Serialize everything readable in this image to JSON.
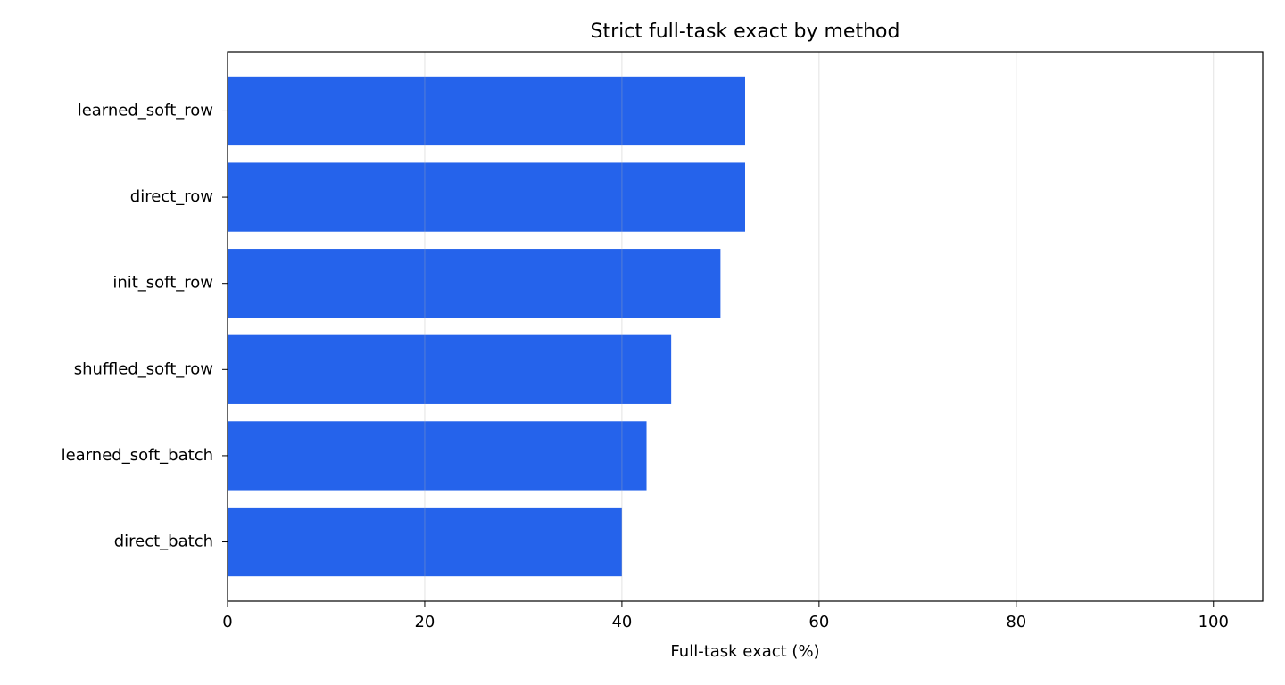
{
  "chart_data": {
    "type": "barh",
    "title": "Strict full-task exact by method",
    "xlabel": "Full-task exact (%)",
    "categories": [
      "learned_soft_row",
      "direct_row",
      "init_soft_row",
      "shuffled_soft_row",
      "learned_soft_batch",
      "direct_batch"
    ],
    "values": [
      52.5,
      52.5,
      50.0,
      45.0,
      42.5,
      40.0
    ],
    "color": "#2563eb",
    "xlim": [
      0,
      105
    ],
    "xticks": [
      0,
      20,
      40,
      60,
      80,
      100
    ],
    "grid": true
  }
}
